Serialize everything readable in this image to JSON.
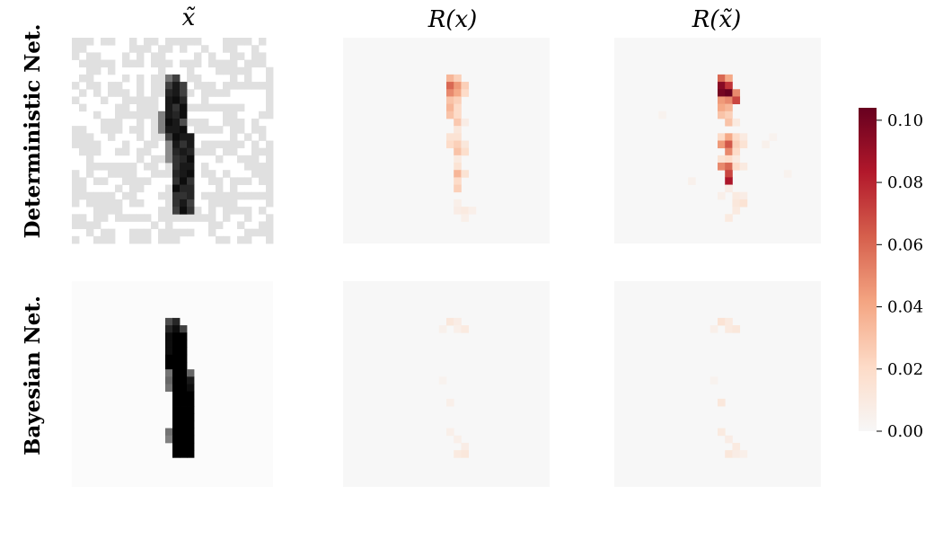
{
  "chart_data": {
    "type": "heatmap",
    "column_titles": [
      "x̃",
      "R(x)",
      "R(x̃)"
    ],
    "row_labels": [
      "Deterministic Net.",
      "Bayesian Net."
    ],
    "colorbar": {
      "colormap": "Reds",
      "range": [
        0.0,
        0.104
      ],
      "ticks": [
        0.0,
        0.02,
        0.04,
        0.06,
        0.08,
        0.1
      ],
      "tick_labels": [
        "0.00",
        "0.02",
        "0.04",
        "0.06",
        "0.08",
        "0.10"
      ]
    },
    "grid_size": [
      28,
      28
    ],
    "panels": [
      {
        "row": "Deterministic Net.",
        "column": "x̃",
        "kind": "grayscale-image",
        "cells": [
          [
            13,
            5,
            0.55
          ],
          [
            14,
            5,
            0.75
          ],
          [
            13,
            6,
            0.75
          ],
          [
            14,
            6,
            0.9
          ],
          [
            15,
            6,
            0.75
          ],
          [
            13,
            7,
            0.85
          ],
          [
            14,
            7,
            0.9
          ],
          [
            15,
            7,
            0.75
          ],
          [
            13,
            8,
            0.9
          ],
          [
            14,
            8,
            0.95
          ],
          [
            15,
            8,
            0.85
          ],
          [
            13,
            9,
            0.9
          ],
          [
            14,
            9,
            0.8
          ],
          [
            15,
            9,
            0.95
          ],
          [
            12,
            10,
            0.5
          ],
          [
            13,
            10,
            0.9
          ],
          [
            14,
            10,
            0.85
          ],
          [
            15,
            10,
            0.95
          ],
          [
            12,
            11,
            0.5
          ],
          [
            13,
            11,
            0.95
          ],
          [
            14,
            11,
            0.9
          ],
          [
            15,
            11,
            0.7
          ],
          [
            12,
            12,
            0.5
          ],
          [
            13,
            12,
            0.9
          ],
          [
            14,
            12,
            0.9
          ],
          [
            15,
            12,
            0.95
          ],
          [
            13,
            13,
            0.75
          ],
          [
            14,
            13,
            0.95
          ],
          [
            15,
            13,
            0.9
          ],
          [
            16,
            13,
            0.9
          ],
          [
            13,
            14,
            0.45
          ],
          [
            14,
            14,
            0.9
          ],
          [
            15,
            14,
            0.8
          ],
          [
            16,
            14,
            0.9
          ],
          [
            13,
            15,
            0.45
          ],
          [
            14,
            15,
            0.85
          ],
          [
            15,
            15,
            0.9
          ],
          [
            16,
            15,
            0.85
          ],
          [
            13,
            16,
            0.45
          ],
          [
            14,
            16,
            0.8
          ],
          [
            15,
            16,
            0.85
          ],
          [
            16,
            16,
            0.95
          ],
          [
            14,
            17,
            0.8
          ],
          [
            15,
            17,
            0.9
          ],
          [
            16,
            17,
            0.9
          ],
          [
            14,
            18,
            0.85
          ],
          [
            15,
            18,
            0.9
          ],
          [
            16,
            18,
            0.95
          ],
          [
            14,
            19,
            0.8
          ],
          [
            15,
            19,
            0.95
          ],
          [
            16,
            19,
            0.8
          ],
          [
            14,
            20,
            0.95
          ],
          [
            15,
            20,
            0.85
          ],
          [
            16,
            20,
            0.85
          ],
          [
            14,
            21,
            0.8
          ],
          [
            15,
            21,
            0.8
          ],
          [
            16,
            21,
            0.85
          ],
          [
            14,
            22,
            0.8
          ],
          [
            15,
            22,
            0.9
          ],
          [
            16,
            22,
            0.75
          ],
          [
            14,
            23,
            0.75
          ],
          [
            15,
            23,
            0.95
          ],
          [
            16,
            23,
            0.8
          ]
        ]
      },
      {
        "row": "Deterministic Net.",
        "column": "R(x)",
        "kind": "relevance",
        "cells": [
          [
            14,
            5,
            0.035
          ],
          [
            15,
            5,
            0.025
          ],
          [
            14,
            6,
            0.06
          ],
          [
            15,
            6,
            0.045
          ],
          [
            16,
            6,
            0.025
          ],
          [
            14,
            7,
            0.05
          ],
          [
            15,
            7,
            0.04
          ],
          [
            16,
            7,
            0.02
          ],
          [
            14,
            8,
            0.03
          ],
          [
            15,
            8,
            0.025
          ],
          [
            14,
            9,
            0.035
          ],
          [
            15,
            9,
            0.02
          ],
          [
            14,
            10,
            0.03
          ],
          [
            15,
            10,
            0.02
          ],
          [
            15,
            11,
            0.028
          ],
          [
            16,
            11,
            0.008
          ],
          [
            15,
            12,
            0.012
          ],
          [
            14,
            13,
            0.015
          ],
          [
            15,
            13,
            0.015
          ],
          [
            14,
            14,
            0.02
          ],
          [
            15,
            14,
            0.025
          ],
          [
            16,
            14,
            0.012
          ],
          [
            15,
            15,
            0.03
          ],
          [
            16,
            15,
            0.018
          ],
          [
            15,
            16,
            0.01
          ],
          [
            15,
            17,
            0.015
          ],
          [
            15,
            18,
            0.035
          ],
          [
            16,
            18,
            0.015
          ],
          [
            15,
            19,
            0.02
          ],
          [
            15,
            20,
            0.025
          ],
          [
            15,
            22,
            0.006
          ],
          [
            15,
            23,
            0.008
          ],
          [
            16,
            23,
            0.01
          ],
          [
            17,
            23,
            0.006
          ],
          [
            16,
            24,
            0.006
          ]
        ]
      },
      {
        "row": "Deterministic Net.",
        "column": "R(x̃)",
        "kind": "relevance",
        "cells": [
          [
            14,
            5,
            0.06
          ],
          [
            15,
            5,
            0.04
          ],
          [
            14,
            6,
            0.095
          ],
          [
            15,
            6,
            0.075
          ],
          [
            14,
            7,
            0.1
          ],
          [
            15,
            7,
            0.104
          ],
          [
            16,
            7,
            0.05
          ],
          [
            14,
            8,
            0.045
          ],
          [
            15,
            8,
            0.05
          ],
          [
            16,
            8,
            0.07
          ],
          [
            14,
            9,
            0.04
          ],
          [
            15,
            9,
            0.035
          ],
          [
            14,
            10,
            0.03
          ],
          [
            15,
            10,
            0.025
          ],
          [
            15,
            11,
            0.03
          ],
          [
            16,
            11,
            0.01
          ],
          [
            14,
            13,
            0.02
          ],
          [
            15,
            13,
            0.04
          ],
          [
            16,
            13,
            0.02
          ],
          [
            17,
            13,
            0.01
          ],
          [
            14,
            14,
            0.045
          ],
          [
            15,
            14,
            0.065
          ],
          [
            16,
            14,
            0.025
          ],
          [
            17,
            14,
            0.015
          ],
          [
            15,
            15,
            0.05
          ],
          [
            16,
            15,
            0.02
          ],
          [
            14,
            16,
            0.015
          ],
          [
            15,
            16,
            0.02
          ],
          [
            16,
            16,
            0.01
          ],
          [
            14,
            17,
            0.05
          ],
          [
            15,
            17,
            0.06
          ],
          [
            16,
            17,
            0.02
          ],
          [
            17,
            17,
            0.01
          ],
          [
            15,
            18,
            0.07
          ],
          [
            15,
            19,
            0.085
          ],
          [
            15,
            20,
            0.008
          ],
          [
            14,
            21,
            0.006
          ],
          [
            16,
            21,
            0.01
          ],
          [
            17,
            21,
            0.008
          ],
          [
            16,
            22,
            0.012
          ],
          [
            17,
            22,
            0.015
          ],
          [
            16,
            23,
            0.01
          ],
          [
            15,
            24,
            0.01
          ],
          [
            6,
            10,
            0.004
          ],
          [
            20,
            14,
            0.005
          ],
          [
            21,
            13,
            0.004
          ],
          [
            10,
            19,
            0.005
          ],
          [
            23,
            18,
            0.004
          ]
        ]
      },
      {
        "row": "Bayesian Net.",
        "column": "x̃",
        "kind": "grayscale-image",
        "cells": [
          [
            13,
            5,
            0.7
          ],
          [
            14,
            5,
            0.85
          ],
          [
            13,
            6,
            0.85
          ],
          [
            14,
            6,
            0.95
          ],
          [
            15,
            6,
            0.75
          ],
          [
            13,
            7,
            0.95
          ],
          [
            14,
            7,
            1.0
          ],
          [
            15,
            7,
            1.0
          ],
          [
            13,
            8,
            0.95
          ],
          [
            14,
            8,
            1.0
          ],
          [
            15,
            8,
            1.0
          ],
          [
            13,
            9,
            0.95
          ],
          [
            14,
            9,
            1.0
          ],
          [
            15,
            9,
            1.0
          ],
          [
            13,
            10,
            1.0
          ],
          [
            14,
            10,
            1.0
          ],
          [
            15,
            10,
            1.0
          ],
          [
            13,
            11,
            1.0
          ],
          [
            14,
            11,
            1.0
          ],
          [
            15,
            11,
            1.0
          ],
          [
            13,
            12,
            0.55
          ],
          [
            14,
            12,
            1.0
          ],
          [
            15,
            12,
            1.0
          ],
          [
            16,
            12,
            0.6
          ],
          [
            13,
            13,
            0.6
          ],
          [
            14,
            13,
            1.0
          ],
          [
            15,
            13,
            1.0
          ],
          [
            16,
            13,
            0.9
          ],
          [
            13,
            14,
            0.55
          ],
          [
            14,
            14,
            1.0
          ],
          [
            15,
            14,
            1.0
          ],
          [
            16,
            14,
            0.95
          ],
          [
            14,
            15,
            1.0
          ],
          [
            15,
            15,
            1.0
          ],
          [
            16,
            15,
            1.0
          ],
          [
            14,
            16,
            1.0
          ],
          [
            15,
            16,
            1.0
          ],
          [
            16,
            16,
            1.0
          ],
          [
            14,
            17,
            1.0
          ],
          [
            15,
            17,
            1.0
          ],
          [
            16,
            17,
            1.0
          ],
          [
            14,
            18,
            1.0
          ],
          [
            15,
            18,
            1.0
          ],
          [
            16,
            18,
            1.0
          ],
          [
            14,
            19,
            1.0
          ],
          [
            15,
            19,
            1.0
          ],
          [
            16,
            19,
            1.0
          ],
          [
            13,
            20,
            0.55
          ],
          [
            14,
            20,
            1.0
          ],
          [
            15,
            20,
            1.0
          ],
          [
            16,
            20,
            1.0
          ],
          [
            13,
            21,
            0.5
          ],
          [
            14,
            21,
            1.0
          ],
          [
            15,
            21,
            1.0
          ],
          [
            16,
            21,
            1.0
          ],
          [
            14,
            22,
            1.0
          ],
          [
            15,
            22,
            1.0
          ],
          [
            16,
            22,
            1.0
          ],
          [
            14,
            23,
            1.0
          ],
          [
            15,
            23,
            1.0
          ],
          [
            16,
            23,
            1.0
          ]
        ]
      },
      {
        "row": "Bayesian Net.",
        "column": "R(x)",
        "kind": "relevance",
        "cells": [
          [
            14,
            5,
            0.012
          ],
          [
            15,
            5,
            0.008
          ],
          [
            13,
            6,
            0.005
          ],
          [
            15,
            6,
            0.006
          ],
          [
            16,
            6,
            0.01
          ],
          [
            13,
            13,
            0.004
          ],
          [
            14,
            16,
            0.006
          ],
          [
            14,
            20,
            0.006
          ],
          [
            15,
            21,
            0.006
          ],
          [
            16,
            22,
            0.008
          ],
          [
            15,
            23,
            0.01
          ],
          [
            16,
            23,
            0.012
          ]
        ]
      },
      {
        "row": "Bayesian Net.",
        "column": "R(x̃)",
        "kind": "relevance",
        "cells": [
          [
            14,
            5,
            0.015
          ],
          [
            15,
            5,
            0.01
          ],
          [
            13,
            6,
            0.006
          ],
          [
            15,
            6,
            0.01
          ],
          [
            16,
            6,
            0.012
          ],
          [
            13,
            13,
            0.004
          ],
          [
            14,
            16,
            0.012
          ],
          [
            14,
            20,
            0.01
          ],
          [
            15,
            21,
            0.008
          ],
          [
            16,
            22,
            0.01
          ],
          [
            15,
            23,
            0.012
          ],
          [
            16,
            23,
            0.008
          ],
          [
            17,
            23,
            0.006
          ]
        ]
      }
    ]
  }
}
